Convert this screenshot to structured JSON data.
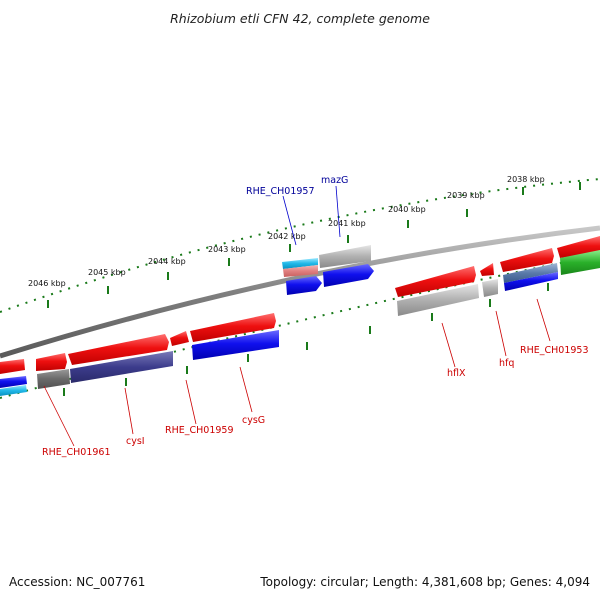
{
  "title": "Rhizobium etli CFN 42, complete genome",
  "footer": {
    "accession": "Accession: NC_007761",
    "topology": "Topology: circular; Length: 4,381,608 bp; Genes: 4,094"
  },
  "scale": {
    "labels": [
      "2038 kbp",
      "2039 kbp",
      "2040 kbp",
      "2041 kbp",
      "2042 kbp",
      "2043 kbp",
      "2044 kbp",
      "2045 kbp",
      "2046 kbp"
    ],
    "tick_color": "#1a7a1a"
  },
  "colors": {
    "backbone": "#8c8c8c",
    "red": "#e01010",
    "blue": "#1010e0",
    "cyan": "#20b8e8",
    "grey": "#a8a8a8",
    "navy": "#3a3a8a",
    "green": "#2ab02a",
    "pink": "#e08080",
    "label_red": "#cc0000",
    "label_blue": "#000099"
  },
  "gene_labels": [
    {
      "id": "RHE_CH01957",
      "text": "RHE_CH01957",
      "color": "blue"
    },
    {
      "id": "mazG",
      "text": "mazG",
      "color": "blue"
    },
    {
      "id": "RHE_CH01961",
      "text": "RHE_CH01961",
      "color": "red"
    },
    {
      "id": "cysI",
      "text": "cysI",
      "color": "red"
    },
    {
      "id": "RHE_CH01959",
      "text": "RHE_CH01959",
      "color": "red"
    },
    {
      "id": "cysG",
      "text": "cysG",
      "color": "red"
    },
    {
      "id": "hflX",
      "text": "hflX",
      "color": "red"
    },
    {
      "id": "hfq",
      "text": "hfq",
      "color": "red"
    },
    {
      "id": "RHE_CH01953",
      "text": "RHE_CH01953",
      "color": "red"
    }
  ]
}
